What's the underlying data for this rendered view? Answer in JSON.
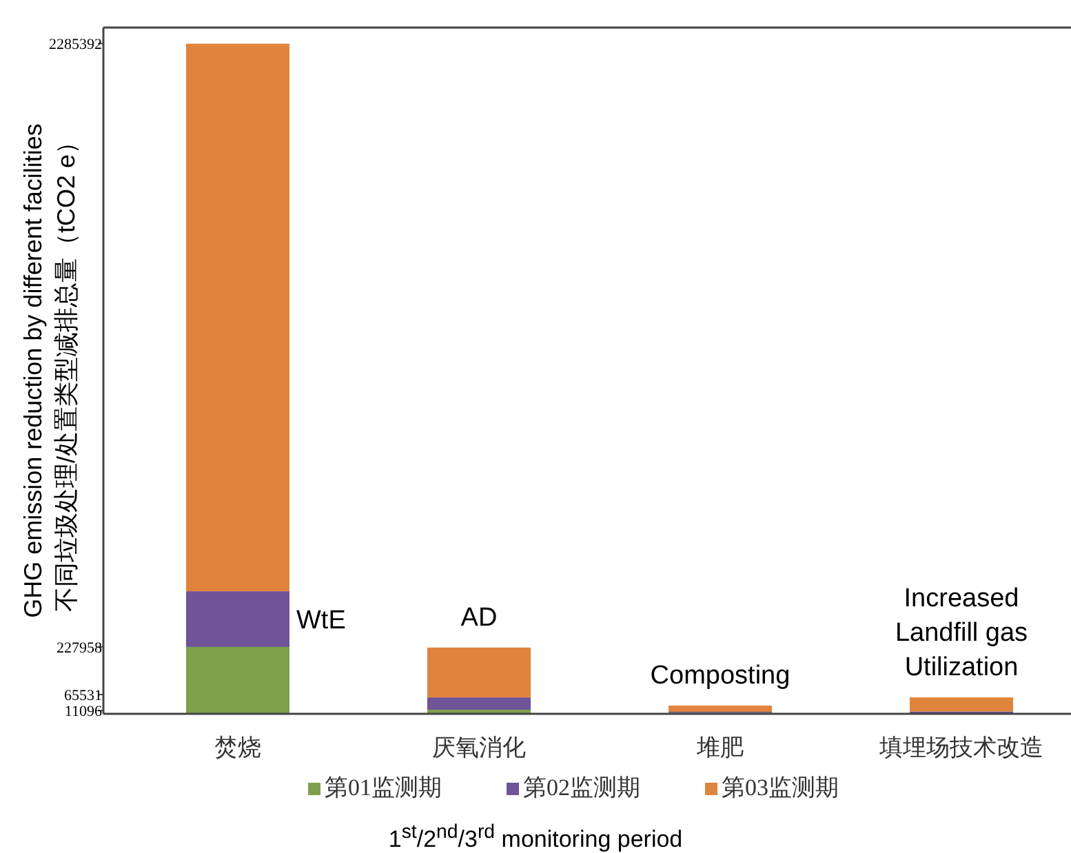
{
  "chart_data": {
    "type": "bar",
    "stacked": true,
    "ylabel": "GHG emission reduction by different facilities\n不同垃圾处理/处置类型减排总量（tCO2 e）",
    "xlabel": "1$^{st}$/2$^{nd}$/3$^{rd}$ monitoring period",
    "categories": [
      "焚烧",
      "厌氧消化",
      "堆肥",
      "填埋场技术改造"
    ],
    "series": [
      {
        "name": "第01监测期",
        "color": "#7ea04d",
        "values": [
          227958,
          14000,
          4000,
          2000
        ]
      },
      {
        "name": "第02监测期",
        "color": "#6f5497",
        "values": [
          190000,
          42000,
          3000,
          6000
        ]
      },
      {
        "name": "第03监测期",
        "color": "#e0843d",
        "values": [
          1867000,
          170000,
          21000,
          48000
        ]
      }
    ],
    "ylim": [
      0,
      2340000
    ],
    "yticks": [
      11096,
      65531,
      227958,
      2285392
    ],
    "annotations": [
      "WtE",
      "AD",
      "Composting",
      "Increased\nLandfill gas\nUtilization"
    ],
    "legend": "bottom",
    "grid": false
  }
}
